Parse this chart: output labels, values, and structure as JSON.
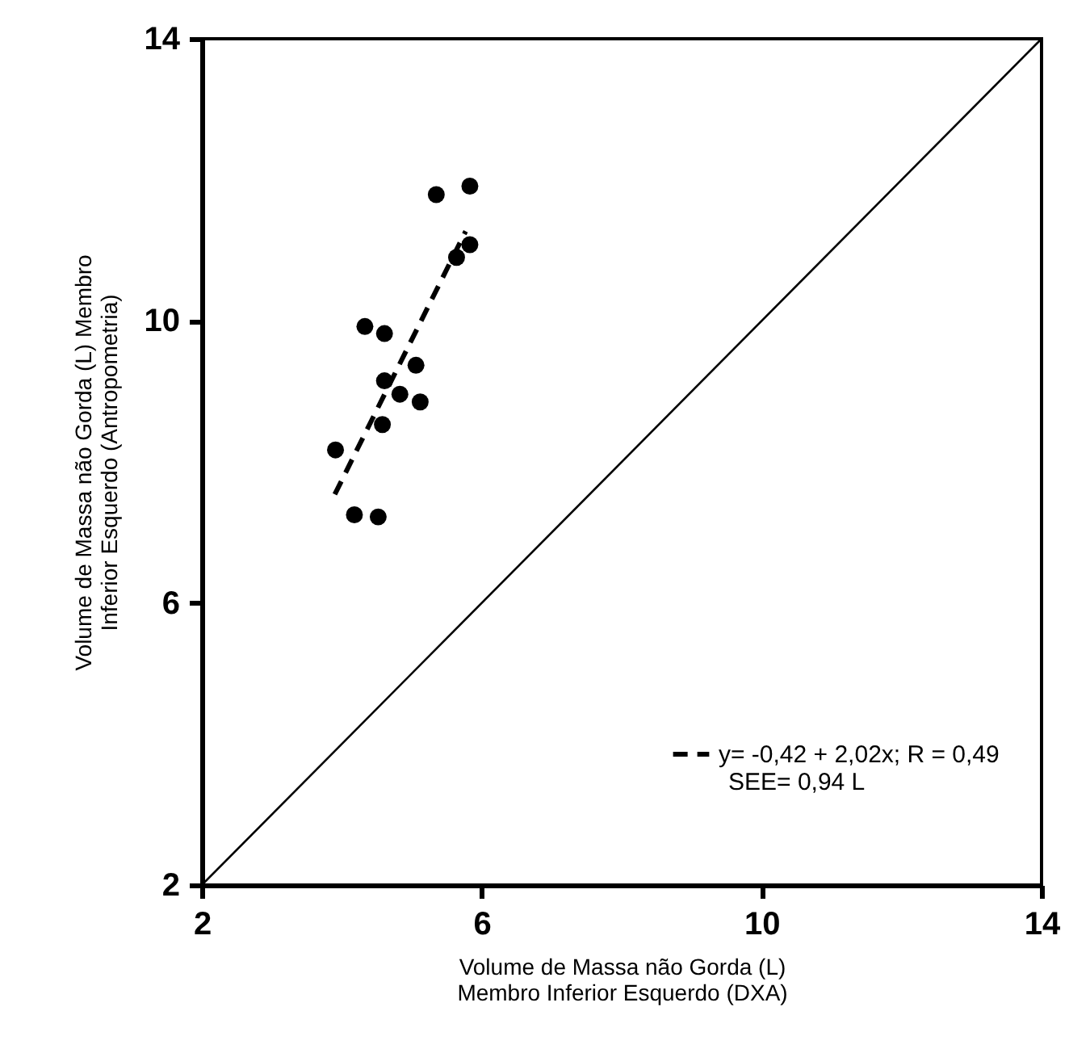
{
  "chart_data": {
    "type": "scatter",
    "xlabel": "Volume de Massa não Gorda (L)\nMembro Inferior Esquerdo (DXA)",
    "ylabel": "Volume de Massa não Gorda (L) Membro\nInferior Esquerdo (Antropometria)",
    "xlim": [
      2,
      14
    ],
    "ylim": [
      2,
      14
    ],
    "xticks": [
      2,
      6,
      10,
      14
    ],
    "yticks": [
      2,
      6,
      10,
      14
    ],
    "grid": false,
    "legend": "bottom right",
    "annotations": [
      "SEE= 0,94 L"
    ],
    "series": [
      {
        "type": "scatter",
        "marker": "circle",
        "color": "#000000",
        "x": [
          5.35,
          5.83,
          5.83,
          5.64,
          4.33,
          4.61,
          5.06,
          4.61,
          4.83,
          5.12,
          4.58,
          3.91,
          4.18,
          4.52
        ],
        "values": [
          11.79,
          11.91,
          11.08,
          10.9,
          9.92,
          9.82,
          9.37,
          9.15,
          8.96,
          8.85,
          8.53,
          8.17,
          7.25,
          7.22
        ]
      },
      {
        "type": "line",
        "name": "y= -0,42 + 2,02x; R = 0,49",
        "color": "#000000",
        "line_style": "dashed",
        "x": [
          3.9,
          5.77
        ],
        "values": [
          7.54,
          11.27
        ]
      },
      {
        "type": "line",
        "color": "#000000",
        "line_style": "solid",
        "x": [
          2,
          14
        ],
        "values": [
          2,
          14
        ]
      }
    ]
  }
}
